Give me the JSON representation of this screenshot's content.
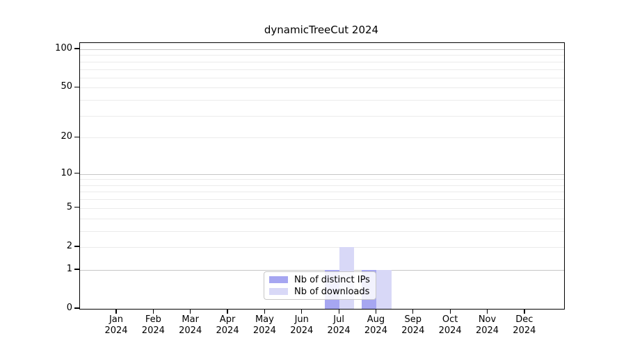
{
  "chart_data": {
    "type": "bar",
    "title": "dynamicTreeCut 2024",
    "x": [
      "Jan 2024",
      "Feb 2024",
      "Mar 2024",
      "Apr 2024",
      "May 2024",
      "Jun 2024",
      "Jul 2024",
      "Aug 2024",
      "Sep 2024",
      "Oct 2024",
      "Nov 2024",
      "Dec 2024"
    ],
    "x_ticks": [
      {
        "line1": "Jan",
        "line2": "2024"
      },
      {
        "line1": "Feb",
        "line2": "2024"
      },
      {
        "line1": "Mar",
        "line2": "2024"
      },
      {
        "line1": "Apr",
        "line2": "2024"
      },
      {
        "line1": "May",
        "line2": "2024"
      },
      {
        "line1": "Jun",
        "line2": "2024"
      },
      {
        "line1": "Jul",
        "line2": "2024"
      },
      {
        "line1": "Aug",
        "line2": "2024"
      },
      {
        "line1": "Sep",
        "line2": "2024"
      },
      {
        "line1": "Oct",
        "line2": "2024"
      },
      {
        "line1": "Nov",
        "line2": "2024"
      },
      {
        "line1": "Dec",
        "line2": "2024"
      }
    ],
    "series": [
      {
        "name": "Nb of distinct IPs",
        "color": "#a6a6f1",
        "values": [
          0,
          0,
          0,
          0,
          0,
          0,
          1,
          1,
          0,
          0,
          0,
          0
        ]
      },
      {
        "name": "Nb of downloads",
        "color": "#d8d8f7",
        "values": [
          0,
          0,
          0,
          0,
          0,
          0,
          2,
          1,
          0,
          0,
          0,
          0
        ]
      }
    ],
    "y_scale": "log10(value+1)",
    "ylim": [
      0,
      100
    ],
    "y_ticks": [
      0,
      1,
      2,
      5,
      10,
      20,
      50,
      100
    ],
    "y_gridlines_major": [
      1,
      10,
      100
    ],
    "y_gridlines_minor": [
      2,
      3,
      4,
      5,
      6,
      7,
      8,
      9,
      20,
      30,
      40,
      50,
      60,
      70,
      80,
      90
    ],
    "grid": true,
    "legend": {
      "position": "lower-center",
      "entries": [
        "Nb of distinct IPs",
        "Nb of downloads"
      ]
    },
    "colors": {
      "grid_major": "#c6c6c6",
      "grid_minor": "#ebebeb",
      "axis": "#000000",
      "background": "#ffffff"
    }
  }
}
